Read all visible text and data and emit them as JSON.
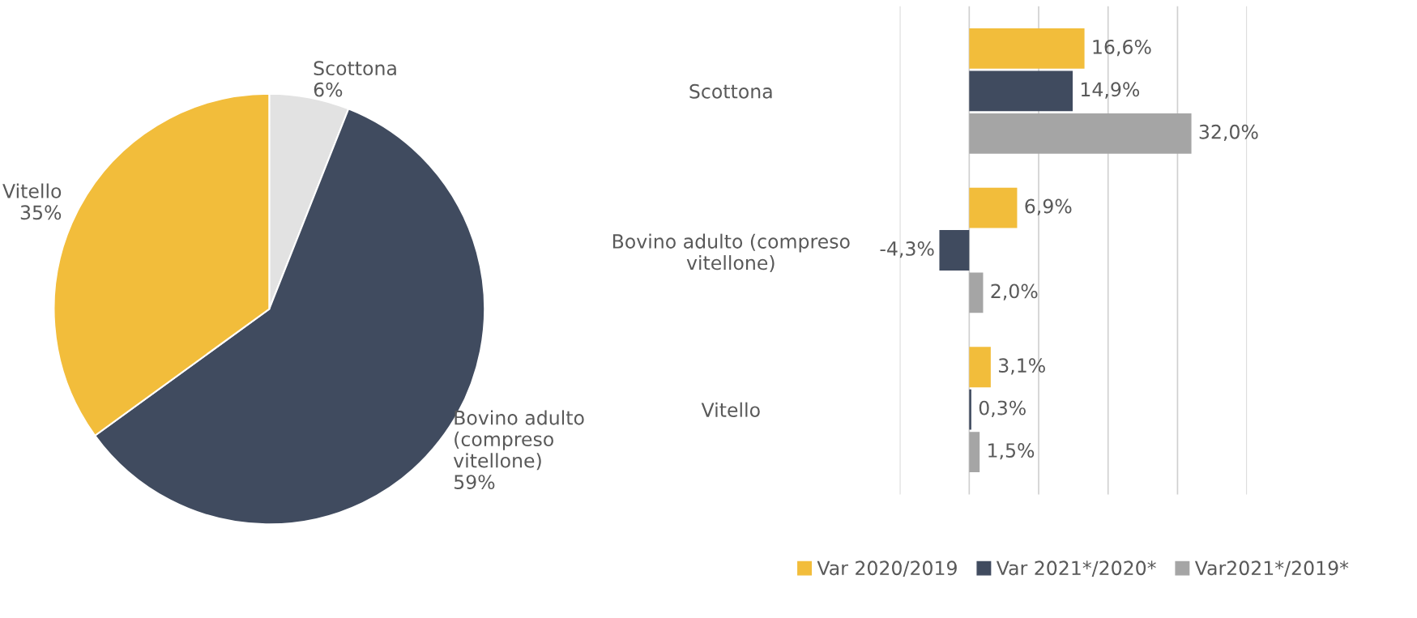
{
  "chart_data": [
    {
      "type": "pie",
      "categories": [
        "Scottona",
        "Bovino adulto\n(compreso\nvitellone)",
        "Vitello"
      ],
      "values": [
        6,
        59,
        35
      ],
      "colors": [
        "#e2e2e2",
        "#404b5f",
        "#f2bd3b"
      ],
      "value_labels": [
        "6%",
        "59%",
        "35%"
      ]
    },
    {
      "type": "bar",
      "orientation": "horizontal",
      "categories": [
        "Scottona",
        "Bovino adulto (compreso\nvitellone)",
        "Vitello"
      ],
      "series": [
        {
          "name": "Var 2020/2019",
          "color": "#f2bd3b",
          "values": [
            16.6,
            6.9,
            3.1
          ],
          "value_labels": [
            "16,6%",
            "6,9%",
            "3,1%"
          ]
        },
        {
          "name": "Var 2021*/2020*",
          "color": "#404b5f",
          "values": [
            14.9,
            -4.3,
            0.3
          ],
          "value_labels": [
            "14,9%",
            "-4,3%",
            "0,3%"
          ]
        },
        {
          "name": "Var2021*/2019*",
          "color": "#a5a5a5",
          "values": [
            32.0,
            2.0,
            1.5
          ],
          "value_labels": [
            "32,0%",
            "2,0%",
            "1,5%"
          ]
        }
      ],
      "xlim": [
        -10,
        40
      ],
      "xticks": [
        {
          "value": -10,
          "label": null
        },
        {
          "value": 0,
          "label": null
        },
        {
          "value": 10,
          "label": null
        },
        {
          "value": 20,
          "label": null
        },
        {
          "value": 30,
          "label": null
        },
        {
          "value": 40,
          "label": null
        }
      ],
      "grid": "x",
      "legend": "bottom",
      "tick_labels": "y"
    }
  ]
}
